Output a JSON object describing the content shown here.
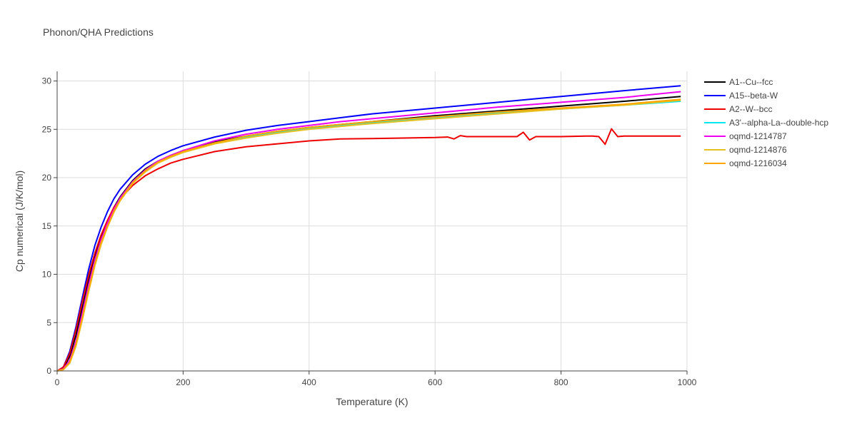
{
  "chart_data": {
    "type": "line",
    "title": "Phonon/QHA Predictions",
    "xlabel": "Temperature (K)",
    "ylabel": "Cp numerical (J/K/mol)",
    "xlim": [
      0,
      1000
    ],
    "ylim": [
      0,
      31
    ],
    "xticks": [
      0,
      200,
      400,
      600,
      800,
      1000
    ],
    "yticks": [
      0,
      5,
      10,
      15,
      20,
      25,
      30
    ],
    "grid": true,
    "legend_position": "right",
    "series": [
      {
        "name": "A1--Cu--fcc",
        "color": "#000000",
        "x": [
          0,
          10,
          20,
          30,
          40,
          50,
          60,
          70,
          80,
          90,
          100,
          120,
          140,
          160,
          180,
          200,
          250,
          300,
          350,
          400,
          450,
          500,
          600,
          700,
          800,
          900,
          990
        ],
        "y": [
          0,
          0.3,
          1.5,
          3.7,
          6.5,
          9.3,
          11.8,
          13.8,
          15.5,
          16.9,
          18.0,
          19.7,
          20.9,
          21.7,
          22.3,
          22.8,
          23.7,
          24.3,
          24.8,
          25.2,
          25.5,
          25.8,
          26.4,
          26.9,
          27.4,
          27.9,
          28.4
        ]
      },
      {
        "name": "A15--beta-W",
        "color": "#0000ff",
        "x": [
          0,
          10,
          20,
          30,
          40,
          50,
          60,
          70,
          80,
          90,
          100,
          120,
          140,
          160,
          180,
          200,
          250,
          300,
          350,
          400,
          450,
          500,
          600,
          700,
          800,
          900,
          990
        ],
        "y": [
          0,
          0.4,
          2.0,
          4.6,
          7.6,
          10.5,
          13.0,
          14.9,
          16.5,
          17.8,
          18.8,
          20.3,
          21.4,
          22.2,
          22.8,
          23.3,
          24.2,
          24.9,
          25.4,
          25.8,
          26.2,
          26.6,
          27.2,
          27.8,
          28.4,
          29.0,
          29.5
        ]
      },
      {
        "name": "A2--W--bcc",
        "color": "#ee0000",
        "x": [
          0,
          10,
          20,
          30,
          40,
          50,
          60,
          70,
          80,
          90,
          100,
          120,
          140,
          160,
          180,
          200,
          250,
          300,
          350,
          400,
          450,
          500,
          550,
          600,
          620,
          630,
          640,
          650,
          700,
          730,
          740,
          750,
          760,
          800,
          840,
          850,
          860,
          870,
          880,
          890,
          900,
          950,
          960,
          970,
          990
        ],
        "y": [
          0,
          0.4,
          1.8,
          4.3,
          7.2,
          9.9,
          12.2,
          14.1,
          15.6,
          16.9,
          17.8,
          19.2,
          20.2,
          20.9,
          21.5,
          21.9,
          22.7,
          23.2,
          23.5,
          23.8,
          24.0,
          24.05,
          24.1,
          24.15,
          24.2,
          24.0,
          24.35,
          24.25,
          24.25,
          24.25,
          24.7,
          23.9,
          24.25,
          24.25,
          24.3,
          24.3,
          24.25,
          23.45,
          25.05,
          24.25,
          24.3,
          24.3,
          24.3,
          24.3,
          24.3
        ]
      },
      {
        "name": "A3'--alpha-La--double-hcp",
        "color": "#00e5ee",
        "x": [
          0,
          10,
          20,
          30,
          40,
          50,
          60,
          70,
          80,
          90,
          100,
          120,
          140,
          160,
          180,
          200,
          250,
          300,
          350,
          400,
          450,
          500,
          600,
          700,
          800,
          900,
          990
        ],
        "y": [
          0,
          0.2,
          1.0,
          3.0,
          5.8,
          8.7,
          11.3,
          13.4,
          15.2,
          16.6,
          17.8,
          19.5,
          20.7,
          21.6,
          22.2,
          22.7,
          23.6,
          24.2,
          24.7,
          25.1,
          25.4,
          25.7,
          26.2,
          26.7,
          27.1,
          27.5,
          27.9
        ]
      },
      {
        "name": "oqmd-1214787",
        "color": "#ee00ee",
        "x": [
          0,
          10,
          20,
          30,
          40,
          50,
          60,
          70,
          80,
          90,
          100,
          120,
          140,
          160,
          180,
          200,
          250,
          300,
          350,
          400,
          450,
          500,
          600,
          700,
          800,
          900,
          990
        ],
        "y": [
          0,
          0.2,
          1.1,
          3.1,
          6.0,
          8.9,
          11.5,
          13.6,
          15.3,
          16.7,
          17.9,
          19.6,
          20.8,
          21.7,
          22.3,
          22.8,
          23.8,
          24.5,
          25.0,
          25.4,
          25.8,
          26.1,
          26.7,
          27.3,
          27.8,
          28.3,
          28.9
        ]
      },
      {
        "name": "oqmd-1214876",
        "color": "#e8c020",
        "x": [
          0,
          10,
          20,
          30,
          40,
          50,
          60,
          70,
          80,
          90,
          100,
          120,
          140,
          160,
          180,
          200,
          250,
          300,
          350,
          400,
          450,
          500,
          600,
          700,
          800,
          900,
          990
        ],
        "y": [
          0,
          0.15,
          0.8,
          2.6,
          5.3,
          8.2,
          10.9,
          13.1,
          14.9,
          16.4,
          17.6,
          19.4,
          20.6,
          21.5,
          22.1,
          22.6,
          23.5,
          24.1,
          24.6,
          25.0,
          25.3,
          25.6,
          26.1,
          26.6,
          27.1,
          27.5,
          28.0
        ]
      },
      {
        "name": "oqmd-1216034",
        "color": "#ffa500",
        "x": [
          0,
          10,
          20,
          30,
          40,
          50,
          60,
          70,
          80,
          90,
          100,
          120,
          140,
          160,
          180,
          200,
          250,
          300,
          350,
          400,
          450,
          500,
          600,
          700,
          800,
          900,
          990
        ],
        "y": [
          0,
          0.15,
          0.9,
          2.8,
          5.5,
          8.4,
          11.1,
          13.3,
          15.0,
          16.5,
          17.7,
          19.5,
          20.7,
          21.6,
          22.2,
          22.7,
          23.6,
          24.3,
          24.8,
          25.2,
          25.5,
          25.8,
          26.3,
          26.8,
          27.2,
          27.6,
          28.1
        ]
      }
    ]
  }
}
